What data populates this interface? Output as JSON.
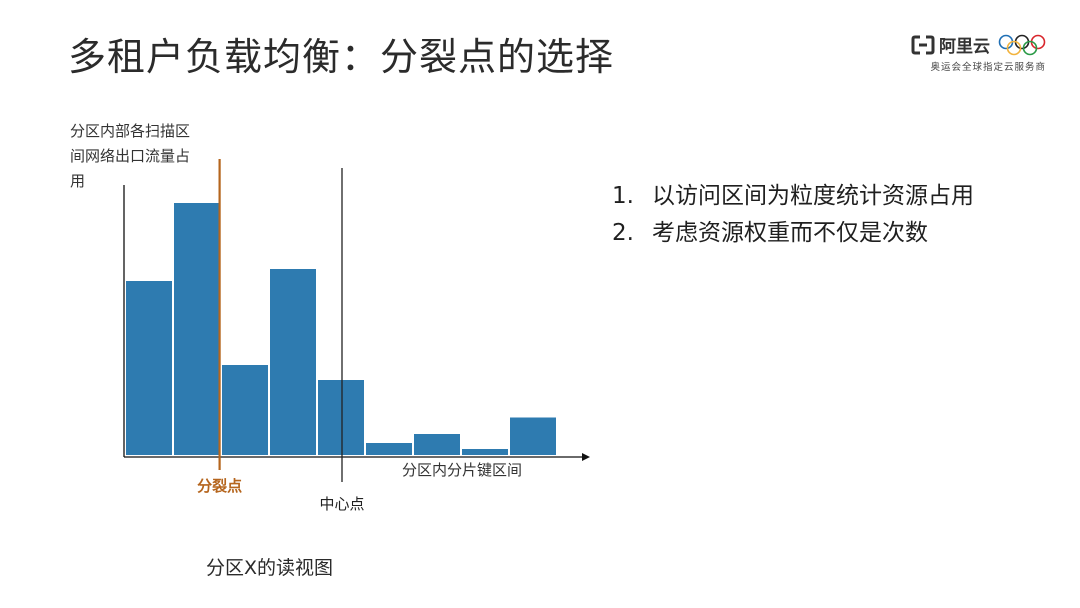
{
  "slide": {
    "title": "多租户负载均衡：分裂点的选择"
  },
  "brand": {
    "name": "阿里云",
    "tagline": "奥运会全球指定云服务商",
    "logo_icon": "aliyun-logo-icon",
    "rings_icon": "olympic-rings-icon"
  },
  "chart_data": {
    "type": "bar",
    "ylabel": "分区内部各扫描区间网络出口流量占用",
    "xlabel": "分区内分片键区间",
    "caption": "分区X的读视图",
    "color": "#2e7bb0",
    "categories": [
      "",
      "",
      "",
      "",
      "",
      "",
      "",
      "",
      ""
    ],
    "values": [
      58,
      84,
      30,
      62,
      25,
      4,
      7,
      2,
      12.5
    ],
    "ylim": [
      0,
      100
    ],
    "split_marker": {
      "label": "分裂点",
      "x": 1.95,
      "color": "#b5651d"
    },
    "center_marker": {
      "label": "中心点",
      "x": 4.5,
      "color": "#222222"
    }
  },
  "points": [
    {
      "num": "1.",
      "text": "以访问区间为粒度统计资源占用"
    },
    {
      "num": "2.",
      "text": "考虑资源权重而不仅是次数"
    }
  ]
}
